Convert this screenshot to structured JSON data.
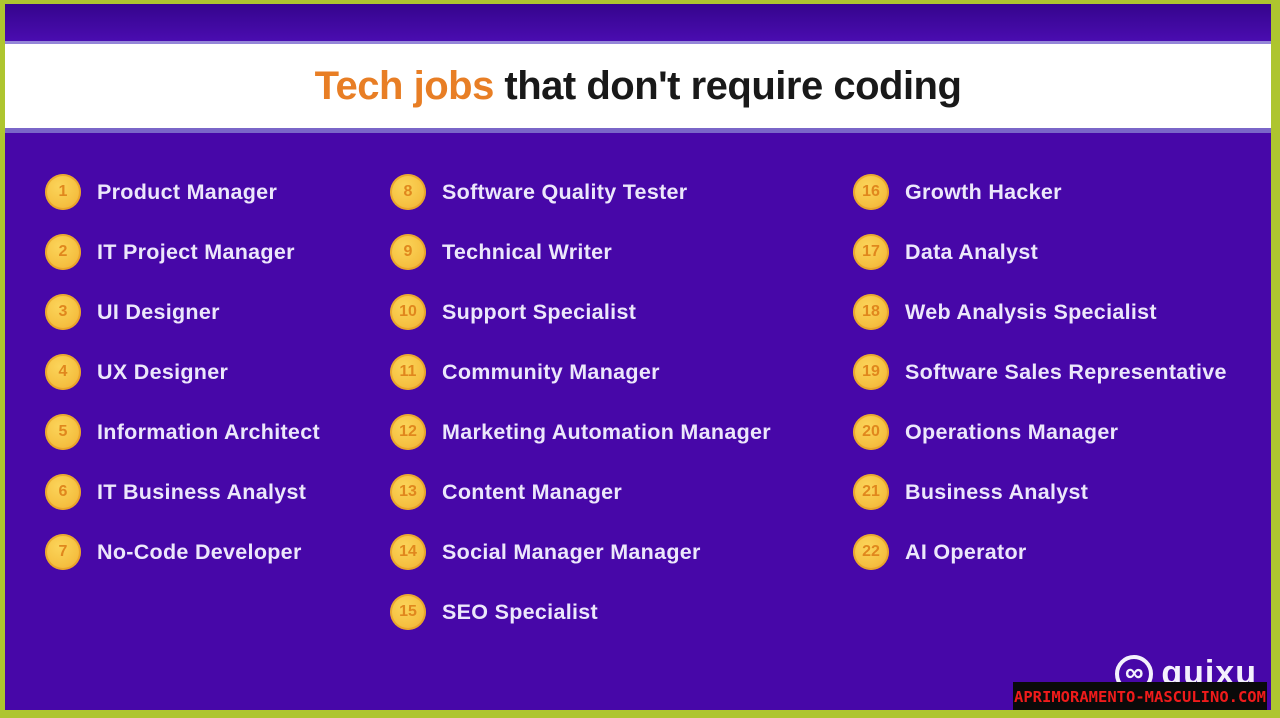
{
  "title": {
    "highlight": "Tech jobs",
    "rest": " that don't require coding"
  },
  "columns": [
    {
      "items": [
        {
          "n": "1",
          "label": "Product Manager"
        },
        {
          "n": "2",
          "label": "IT Project Manager"
        },
        {
          "n": "3",
          "label": "UI Designer"
        },
        {
          "n": "4",
          "label": "UX Designer"
        },
        {
          "n": "5",
          "label": "Information Architect"
        },
        {
          "n": "6",
          "label": "IT Business Analyst"
        },
        {
          "n": "7",
          "label": "No-Code Developer"
        }
      ]
    },
    {
      "items": [
        {
          "n": "8",
          "label": "Software Quality Tester"
        },
        {
          "n": "9",
          "label": "Technical Writer"
        },
        {
          "n": "10",
          "label": "Support Specialist"
        },
        {
          "n": "11",
          "label": "Community Manager"
        },
        {
          "n": "12",
          "label": "Marketing Automation Manager"
        },
        {
          "n": "13",
          "label": "Content Manager"
        },
        {
          "n": "14",
          "label": "Social Manager Manager"
        },
        {
          "n": "15",
          "label": "SEO Specialist"
        }
      ]
    },
    {
      "items": [
        {
          "n": "16",
          "label": "Growth Hacker"
        },
        {
          "n": "17",
          "label": "Data Analyst"
        },
        {
          "n": "18",
          "label": "Web Analysis Specialist"
        },
        {
          "n": "19",
          "label": "Software Sales Representative"
        },
        {
          "n": "20",
          "label": "Operations Manager"
        },
        {
          "n": "21",
          "label": "Business Analyst"
        },
        {
          "n": "22",
          "label": "AI Operator"
        }
      ]
    }
  ],
  "footer": {
    "brand": "quixu",
    "brand_icon": "infinity-icon",
    "infinity_glyph": "∞",
    "watermark": "APRIMORAMENTO-MASCULINO.COM"
  },
  "colors": {
    "background_purple": "#4707a8",
    "frame_green": "#aec52f",
    "badge_yellow": "#f6c243",
    "badge_number_orange": "#e0871d",
    "title_orange": "#e87e25",
    "title_dark": "#191919",
    "list_text": "#ece7fb",
    "watermark_red": "#f01b1b",
    "watermark_bg": "#0a0a0a"
  }
}
